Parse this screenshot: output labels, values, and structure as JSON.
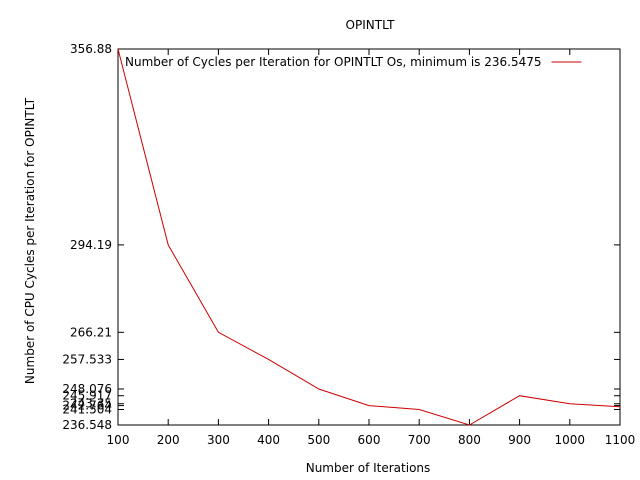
{
  "chart_data": {
    "type": "line",
    "title": "OPINTLT",
    "xlabel": "Number of Iterations",
    "ylabel": "Number of CPU Cycles per Iteration for OPINTLT",
    "xlim": [
      100,
      1100
    ],
    "ylim": [
      236.548,
      356.88
    ],
    "x_ticks": [
      100,
      200,
      300,
      400,
      500,
      600,
      700,
      800,
      900,
      1000,
      1100
    ],
    "y_ticks": [
      356.88,
      294.19,
      266.21,
      257.533,
      248.076,
      245.917,
      243.35,
      242.764,
      241.504,
      236.548
    ],
    "series": [
      {
        "name": "Number of Cycles per Iteration for OPINTLT Os, minimum is 236.5475",
        "color": "#cc0000",
        "x": [
          100,
          200,
          300,
          400,
          500,
          600,
          700,
          800,
          900,
          1000,
          1100
        ],
        "y": [
          356.88,
          294.19,
          266.21,
          257.533,
          248.076,
          242.764,
          241.504,
          236.548,
          245.917,
          243.35,
          242.4
        ]
      }
    ],
    "legend_position": "top-left",
    "grid": false
  }
}
